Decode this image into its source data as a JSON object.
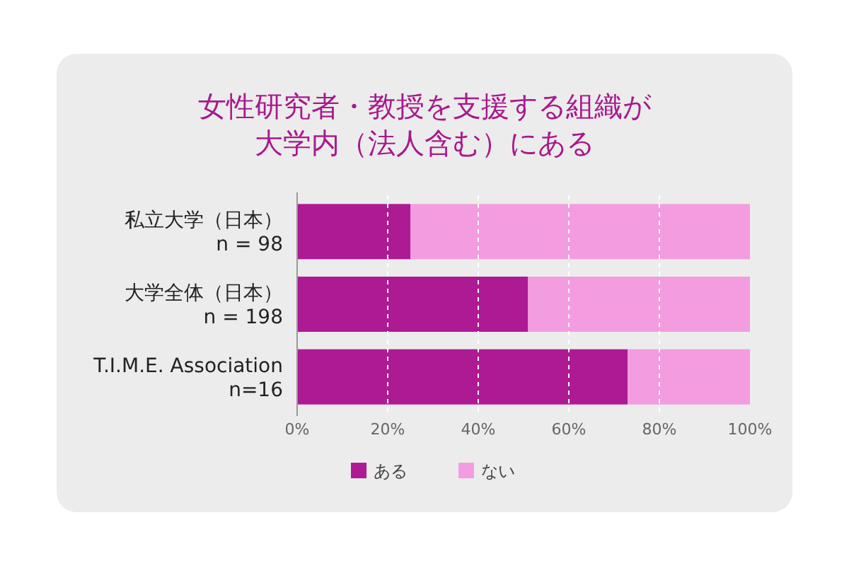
{
  "chart_data": {
    "type": "bar",
    "orientation": "horizontal",
    "stacked": true,
    "title": "女性研究者・教授を支援する組織が大学内（法人含む）にある",
    "categories": [
      "私立大学（日本）\nn = 98",
      "大学全体（日本）\nn = 198",
      "T.I.M.E. Association\nn=16"
    ],
    "series": [
      {
        "name": "ある",
        "color": "#ae1a94",
        "values": [
          25,
          51,
          73
        ]
      },
      {
        "name": "ない",
        "color": "#f49ce0",
        "values": [
          75,
          49,
          27
        ]
      }
    ],
    "xlim": [
      0,
      100
    ],
    "xticks": [
      {
        "value": 0,
        "label": "0%"
      },
      {
        "value": 20,
        "label": "20%"
      },
      {
        "value": 40,
        "label": "40%"
      },
      {
        "value": 60,
        "label": "60%"
      },
      {
        "value": 80,
        "label": "80%"
      },
      {
        "value": 100,
        "label": "100%"
      }
    ],
    "grid": "x",
    "legend": "bottom"
  }
}
